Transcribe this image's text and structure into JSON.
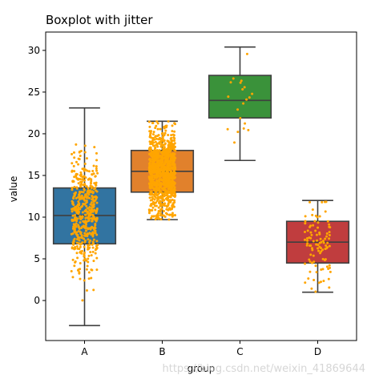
{
  "chart_data": {
    "type": "boxplot",
    "title": "Boxplot with jitter",
    "xlabel": "group",
    "ylabel": "value",
    "ylim": [
      -4.8,
      32.2
    ],
    "yticks": [
      0,
      5,
      10,
      15,
      20,
      25,
      30
    ],
    "grid": false,
    "legend": "none",
    "jitter_color": "#ffa500",
    "categories": [
      "A",
      "B",
      "C",
      "D"
    ],
    "groups": [
      {
        "label": "A",
        "color": "#3274a1",
        "q1": 6.8,
        "median": 10.2,
        "q3": 13.5,
        "whisker_low": -3.0,
        "whisker_high": 23.1,
        "point_count": 500
      },
      {
        "label": "B",
        "color": "#e1812c",
        "q1": 13.0,
        "median": 15.5,
        "q3": 18.0,
        "whisker_low": 9.7,
        "whisker_high": 21.5,
        "point_count": 1000
      },
      {
        "label": "C",
        "color": "#3a923a",
        "q1": 21.9,
        "median": 24.0,
        "q3": 27.0,
        "whisker_low": 16.8,
        "whisker_high": 30.4,
        "point_count": 20
      },
      {
        "label": "D",
        "color": "#c03d3e",
        "q1": 4.5,
        "median": 7.0,
        "q3": 9.5,
        "whisker_low": 1.0,
        "whisker_high": 12.0,
        "point_count": 100
      }
    ]
  },
  "watermark": "https://blog.csdn.net/weixin_41869644"
}
